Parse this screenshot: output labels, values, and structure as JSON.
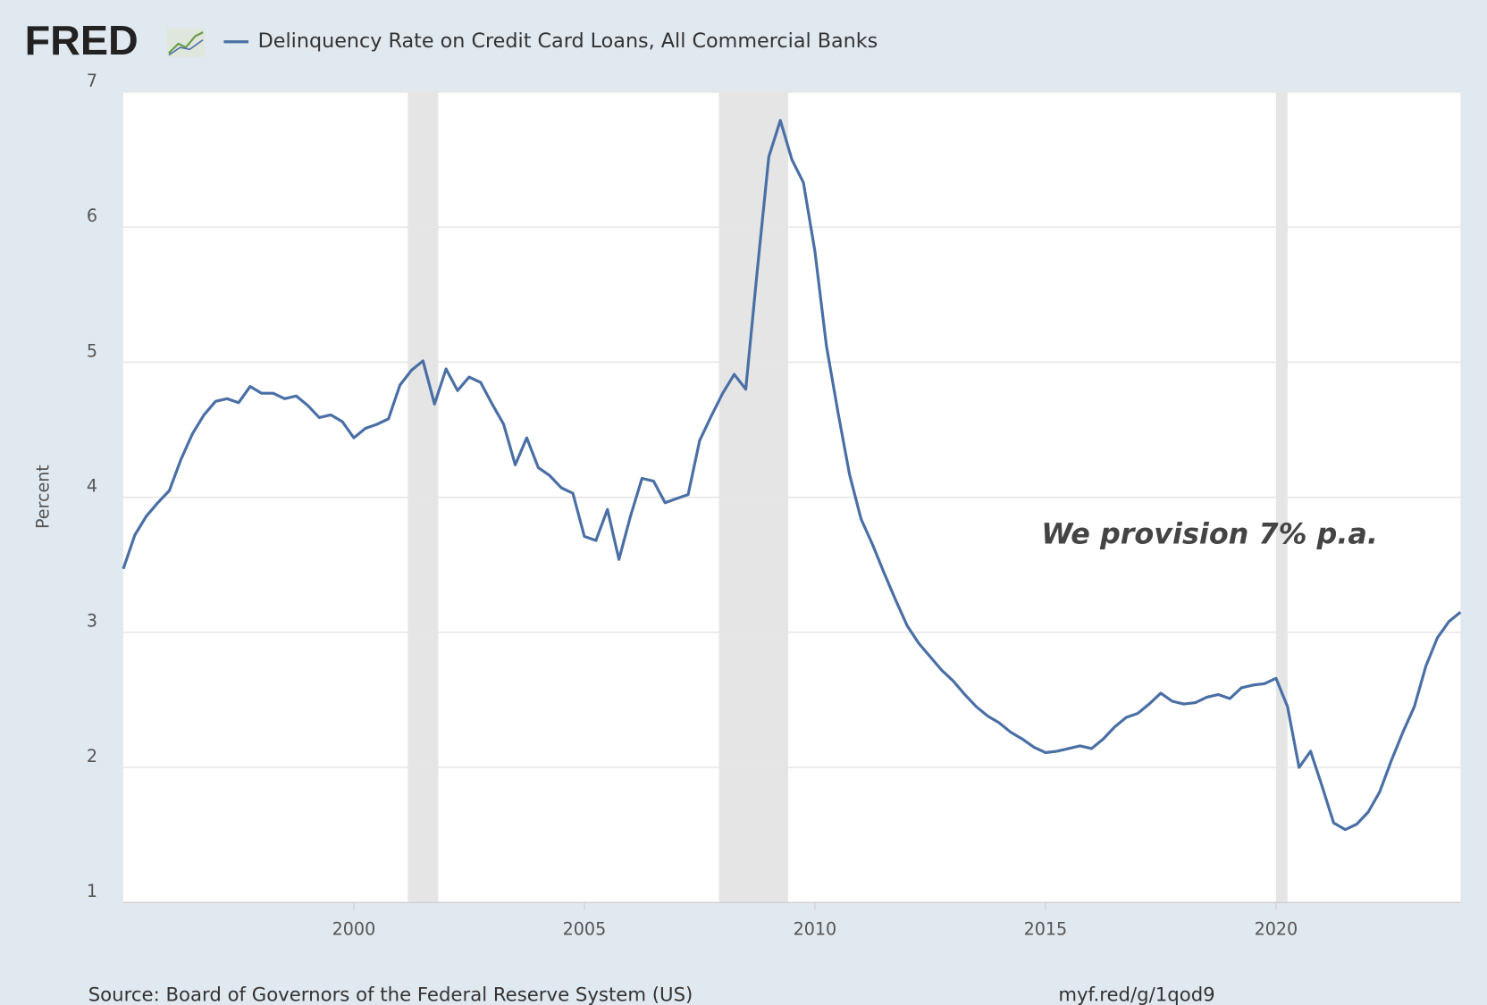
{
  "chart_data": {
    "type": "line",
    "logo": "FRED",
    "ylabel": "Percent",
    "annotation": "We provision 7% p.a.",
    "source": "Source: Board of Governors of the Federal Reserve System (US)",
    "link": "myf.red/g/1qod9",
    "xlim": [
      1995,
      2024
    ],
    "xticks": [
      2000,
      2005,
      2010,
      2015,
      2020
    ],
    "ylim": [
      1,
      7
    ],
    "yticks": [
      1,
      2,
      3,
      4,
      5,
      6,
      7
    ],
    "grid": true,
    "shaded_ranges": [
      [
        2001.17,
        2001.83
      ],
      [
        2007.92,
        2009.42
      ],
      [
        2020.0,
        2020.25
      ]
    ],
    "shade_color": "#e5e5e5",
    "x": [
      1995.0,
      1995.25,
      1995.5,
      1995.75,
      1996.0,
      1996.25,
      1996.5,
      1996.75,
      1997.0,
      1997.25,
      1997.5,
      1997.75,
      1998.0,
      1998.25,
      1998.5,
      1998.75,
      1999.0,
      1999.25,
      1999.5,
      1999.75,
      2000.0,
      2000.25,
      2000.5,
      2000.75,
      2001.0,
      2001.25,
      2001.5,
      2001.75,
      2002.0,
      2002.25,
      2002.5,
      2002.75,
      2003.0,
      2003.25,
      2003.5,
      2003.75,
      2004.0,
      2004.25,
      2004.5,
      2004.75,
      2005.0,
      2005.25,
      2005.5,
      2005.75,
      2006.0,
      2006.25,
      2006.5,
      2006.75,
      2007.0,
      2007.25,
      2007.5,
      2007.75,
      2008.0,
      2008.25,
      2008.5,
      2008.75,
      2009.0,
      2009.25,
      2009.5,
      2009.75,
      2010.0,
      2010.25,
      2010.5,
      2010.75,
      2011.0,
      2011.25,
      2011.5,
      2011.75,
      2012.0,
      2012.25,
      2012.5,
      2012.75,
      2013.0,
      2013.25,
      2013.5,
      2013.75,
      2014.0,
      2014.25,
      2014.5,
      2014.75,
      2015.0,
      2015.25,
      2015.5,
      2015.75,
      2016.0,
      2016.25,
      2016.5,
      2016.75,
      2017.0,
      2017.25,
      2017.5,
      2017.75,
      2018.0,
      2018.25,
      2018.5,
      2018.75,
      2019.0,
      2019.25,
      2019.5,
      2019.75,
      2020.0,
      2020.25,
      2020.5,
      2020.75,
      2021.0,
      2021.25,
      2021.5,
      2021.75,
      2022.0,
      2022.25,
      2022.5,
      2022.75,
      2023.0,
      2023.25,
      2023.5,
      2023.75,
      2024.0
    ],
    "series": [
      {
        "name": "Delinquency Rate on Credit Card Loans, All Commercial Banks",
        "color": "#4a6fa5",
        "values": [
          3.47,
          3.72,
          3.86,
          3.96,
          4.05,
          4.28,
          4.47,
          4.61,
          4.71,
          4.73,
          4.7,
          4.82,
          4.77,
          4.77,
          4.73,
          4.75,
          4.68,
          4.59,
          4.61,
          4.56,
          4.44,
          4.51,
          4.54,
          4.58,
          4.83,
          4.94,
          5.01,
          4.69,
          4.95,
          4.79,
          4.89,
          4.85,
          4.69,
          4.54,
          4.24,
          4.44,
          4.22,
          4.16,
          4.07,
          4.03,
          3.71,
          3.68,
          3.91,
          3.54,
          3.86,
          4.14,
          4.12,
          3.96,
          3.99,
          4.02,
          4.42,
          4.6,
          4.77,
          4.91,
          4.8,
          5.68,
          6.52,
          6.79,
          6.5,
          6.33,
          5.82,
          5.12,
          4.63,
          4.17,
          3.84,
          3.65,
          3.44,
          3.24,
          3.05,
          2.92,
          2.82,
          2.72,
          2.64,
          2.54,
          2.45,
          2.38,
          2.33,
          2.26,
          2.21,
          2.15,
          2.11,
          2.12,
          2.14,
          2.16,
          2.14,
          2.21,
          2.3,
          2.37,
          2.4,
          2.47,
          2.55,
          2.49,
          2.47,
          2.48,
          2.52,
          2.54,
          2.51,
          2.59,
          2.61,
          2.62,
          2.66,
          2.45,
          2.0,
          2.12,
          1.86,
          1.59,
          1.54,
          1.58,
          1.67,
          1.82,
          2.05,
          2.26,
          2.45,
          2.75,
          2.96,
          3.08,
          3.15
        ]
      }
    ]
  }
}
